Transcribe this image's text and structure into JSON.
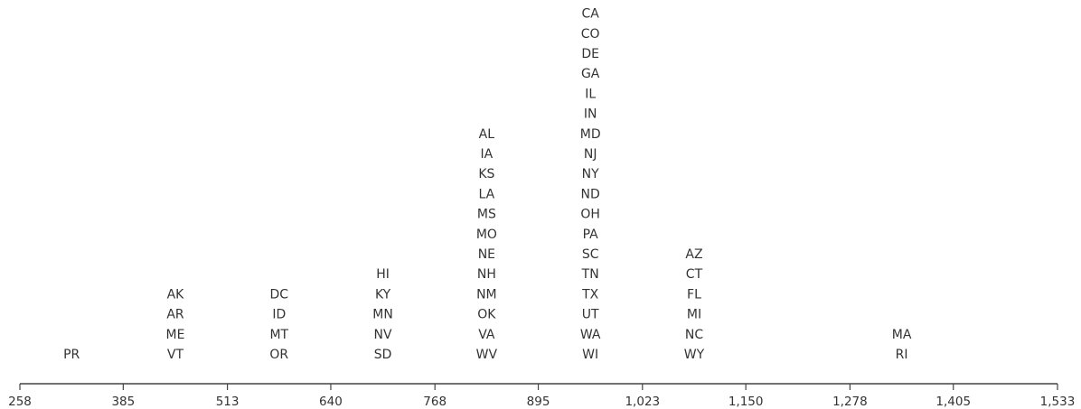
{
  "chart_data": {
    "type": "stacked-label-histogram",
    "title": "",
    "xlabel": "",
    "ylabel": "",
    "xlim": [
      258,
      1533
    ],
    "ticks": [
      258,
      385,
      513,
      640,
      768,
      895,
      1023,
      1150,
      1278,
      1405,
      1533
    ],
    "tick_labels": [
      "258",
      "385",
      "513",
      "640",
      "768",
      "895",
      "1,023",
      "1,150",
      "1,278",
      "1,405",
      "1,533"
    ],
    "bins": [
      {
        "range": [
          258,
          385
        ],
        "labels": [
          "PR"
        ]
      },
      {
        "range": [
          385,
          513
        ],
        "labels": [
          "VT",
          "ME",
          "AR",
          "AK"
        ]
      },
      {
        "range": [
          513,
          640
        ],
        "labels": [
          "OR",
          "MT",
          "ID",
          "DC"
        ]
      },
      {
        "range": [
          640,
          768
        ],
        "labels": [
          "SD",
          "NV",
          "MN",
          "KY",
          "HI"
        ]
      },
      {
        "range": [
          768,
          895
        ],
        "labels": [
          "WV",
          "VA",
          "OK",
          "NM",
          "NH",
          "NE",
          "MO",
          "MS",
          "LA",
          "KS",
          "IA",
          "AL"
        ]
      },
      {
        "range": [
          895,
          1023
        ],
        "labels": [
          "WI",
          "WA",
          "UT",
          "TX",
          "TN",
          "SC",
          "PA",
          "OH",
          "ND",
          "NY",
          "NJ",
          "MD",
          "IN",
          "IL",
          "GA",
          "DE",
          "CO",
          "CA"
        ]
      },
      {
        "range": [
          1023,
          1150
        ],
        "labels": [
          "WY",
          "NC",
          "MI",
          "FL",
          "CT",
          "AZ"
        ]
      },
      {
        "range": [
          1150,
          1278
        ],
        "labels": []
      },
      {
        "range": [
          1278,
          1405
        ],
        "labels": [
          "RI",
          "MA"
        ]
      },
      {
        "range": [
          1405,
          1533
        ],
        "labels": []
      }
    ],
    "grid": false,
    "legend": "none"
  }
}
